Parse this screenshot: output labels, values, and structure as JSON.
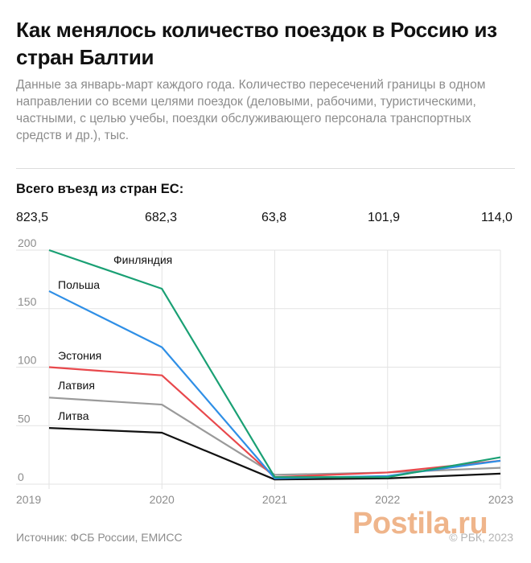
{
  "header": {
    "title": "Как менялось количество поездок в Россию из стран Балтии",
    "subtitle": "Данные за январь-март каждого года. Количество пересечений границы в одном направлении со всеми целями поездок (деловыми, рабочими, туристическими, частными, с целью учебы, поездки обслуживающего персонала транспортных средств и др.), тыс."
  },
  "totals": {
    "title": "Всего въезд из стран ЕС:",
    "values": [
      "823,5",
      "682,3",
      "63,8",
      "101,9",
      "114,0"
    ]
  },
  "chart_data": {
    "type": "line",
    "title": "",
    "xlabel": "",
    "ylabel": "",
    "x": [
      2019,
      2020,
      2021,
      2022,
      2023
    ],
    "ylim": [
      0,
      200
    ],
    "yticks": [
      0,
      50,
      100,
      150,
      200
    ],
    "grid": true,
    "series": [
      {
        "name": "Финляндия",
        "color": "#1aa074",
        "values": [
          200,
          167,
          6,
          6,
          23
        ]
      },
      {
        "name": "Польша",
        "color": "#2f8fe6",
        "values": [
          165,
          117,
          5,
          7,
          20
        ]
      },
      {
        "name": "Эстония",
        "color": "#e8484c",
        "values": [
          100,
          93,
          6,
          10,
          20
        ]
      },
      {
        "name": "Латвия",
        "color": "#9a9a9a",
        "values": [
          74,
          68,
          8,
          10,
          14
        ]
      },
      {
        "name": "Литва",
        "color": "#111111",
        "values": [
          48,
          44,
          4,
          5,
          9
        ]
      }
    ]
  },
  "footer": {
    "source": "Источник: ФСБ России, ЕМИСС",
    "copyright": "© РБК, 2023",
    "watermark": "Postila.ru"
  }
}
